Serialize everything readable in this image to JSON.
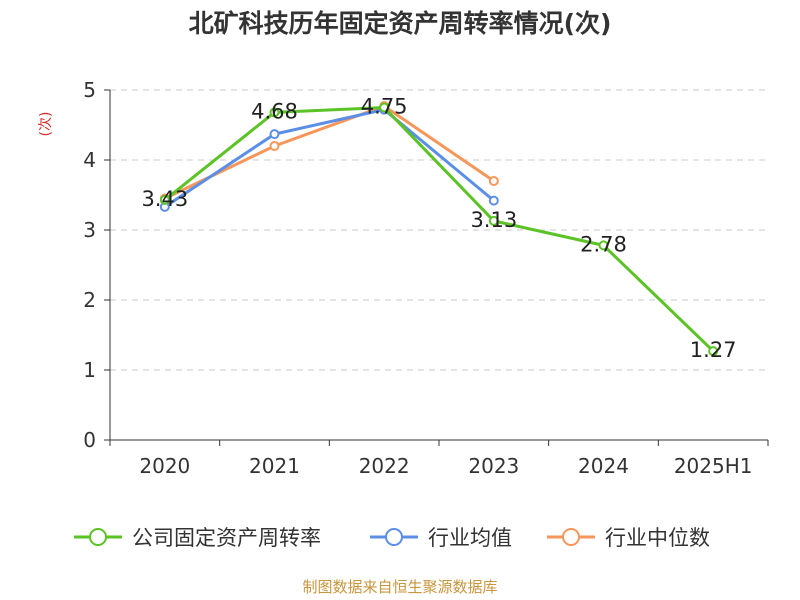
{
  "chart_data": {
    "type": "line",
    "title": "北矿科技历年固定资产周转率情况(次)",
    "ylabel": "(次)",
    "categories": [
      "2020",
      "2021",
      "2022",
      "2023",
      "2024",
      "2025H1"
    ],
    "ylim": [
      0,
      5
    ],
    "yticks": [
      0,
      1,
      2,
      3,
      4,
      5
    ],
    "grid": true,
    "legend_position": "bottom",
    "series": [
      {
        "name": "公司固定资产周转率",
        "color": "#5bc325",
        "values": [
          3.43,
          4.68,
          4.75,
          3.13,
          2.78,
          1.27
        ],
        "labels": [
          "3.43",
          "4.68",
          "4.75",
          "3.13",
          "2.78",
          "1.27"
        ]
      },
      {
        "name": "行业均值",
        "color": "#5b8ee6",
        "values": [
          3.33,
          4.37,
          4.72,
          3.42,
          null,
          null
        ]
      },
      {
        "name": "行业中位数",
        "color": "#f7965a",
        "values": [
          3.45,
          4.2,
          4.77,
          3.7,
          null,
          null
        ]
      }
    ]
  },
  "source": "制图数据来自恒生聚源数据库"
}
